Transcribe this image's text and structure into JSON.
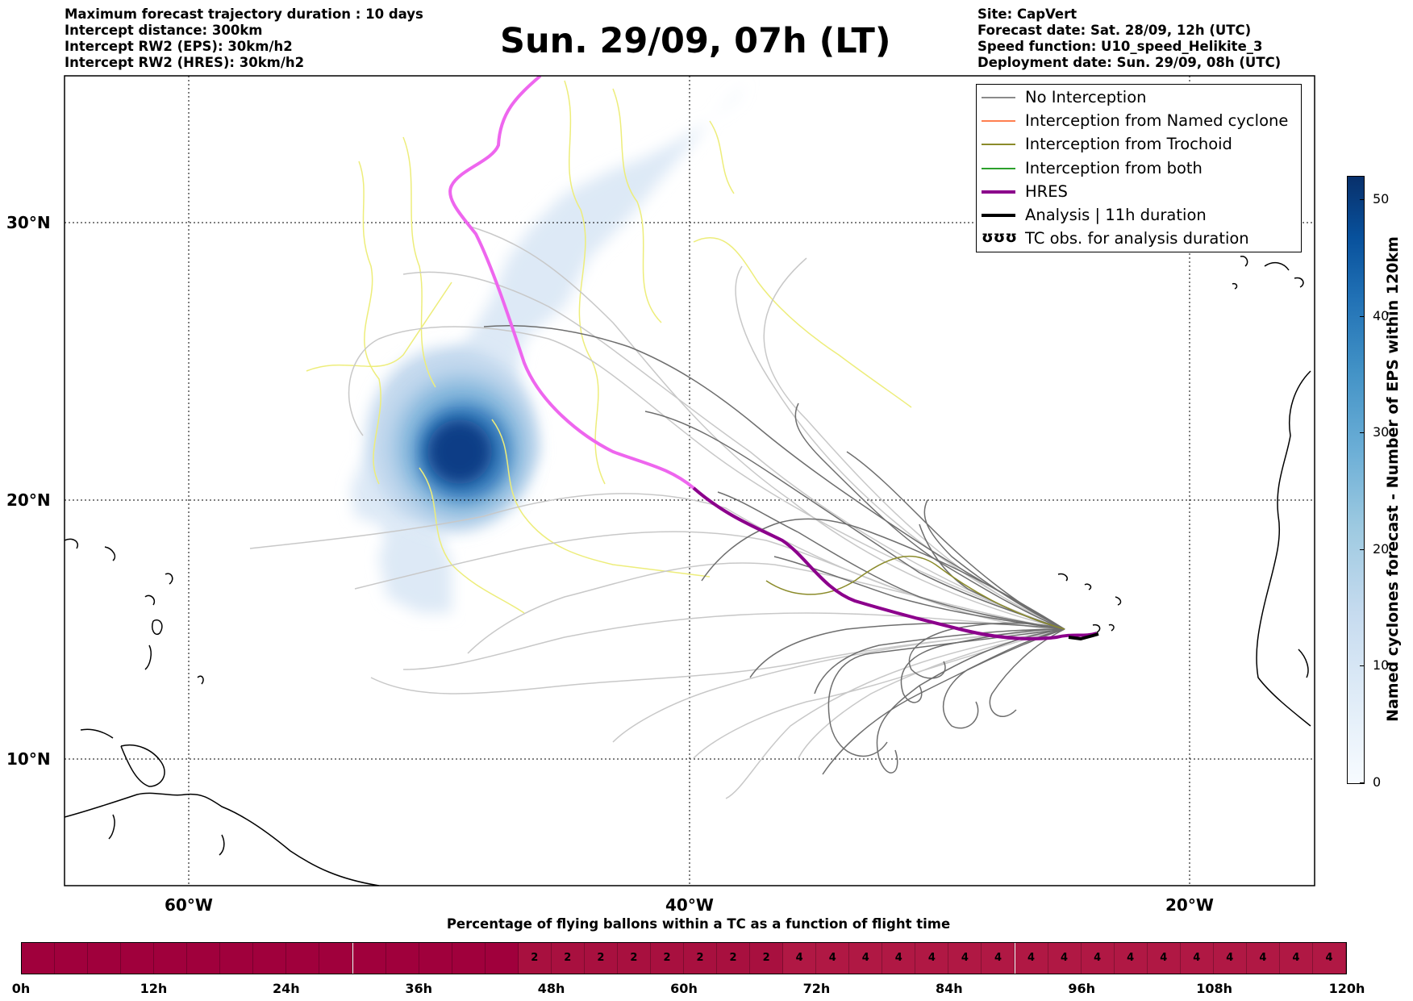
{
  "header_left": {
    "lines": [
      "Maximum forecast trajectory duration : 10 days",
      "Intercept distance: 300km",
      "Intercept RW2 (EPS):  30km/h2",
      "Intercept RW2 (HRES): 30km/h2"
    ]
  },
  "title": "Sun. 29/09, 07h (LT)",
  "header_right": {
    "lines": [
      "Site: CapVert",
      "Forecast date: Sat. 28/09, 12h (UTC)",
      "Speed function: U10_speed_Helikite_3",
      "Deployment date: Sun. 29/09, 08h (UTC)"
    ]
  },
  "map": {
    "lat_ticks": [
      "30°N",
      "20°N",
      "10°N"
    ],
    "lon_ticks": [
      "60°W",
      "40°W",
      "20°W"
    ],
    "colors": {
      "no_interception": "#8a8a8a",
      "named_cyclone": "#ff7f50",
      "trochoid": "#8b8b2a",
      "both": "#2ca02c",
      "hres": "#8b008b",
      "hres_light": "#ee66ee",
      "analysis": "#000000",
      "trochoid_tracks": "#eeee77"
    }
  },
  "legend": {
    "items": [
      {
        "label": "No Interception",
        "color": "#8a8a8a",
        "width": 2
      },
      {
        "label": "Interception from Named cyclone",
        "color": "#ff7f50",
        "width": 2
      },
      {
        "label": "Interception from Trochoid",
        "color": "#8b8b2a",
        "width": 2
      },
      {
        "label": "Interception from both",
        "color": "#2ca02c",
        "width": 2
      },
      {
        "label": "HRES",
        "color": "#8b008b",
        "width": 4
      },
      {
        "label": "Analysis | 11h duration",
        "color": "#000000",
        "width": 4
      },
      {
        "label": "TC obs. for analysis duration",
        "color": "#000000",
        "width": 0,
        "icon": "ʊʊʊ"
      }
    ]
  },
  "colorbar": {
    "label": "Named cyclones forecast - Number of EPS within 120km",
    "ticks": [
      "50",
      "40",
      "30",
      "20",
      "10",
      "0"
    ],
    "tick_values": [
      50,
      40,
      30,
      20,
      10,
      0
    ],
    "max": 52
  },
  "percentage_bar": {
    "title": "Percentage of flying ballons within a TC as a function of flight time",
    "time_labels": [
      "0h",
      "12h",
      "24h",
      "36h",
      "48h",
      "60h",
      "72h",
      "84h",
      "96h",
      "108h",
      "120h"
    ],
    "cells": [
      "",
      "",
      "",
      "",
      "",
      "",
      "",
      "",
      "",
      "",
      "",
      "",
      "",
      "",
      "",
      "2",
      "2",
      "2",
      "2",
      "2",
      "2",
      "2",
      "2",
      "4",
      "4",
      "4",
      "4",
      "4",
      "4",
      "4",
      "4",
      "4",
      "4",
      "4",
      "4",
      "4",
      "4",
      "4",
      "4",
      "4"
    ],
    "cell_colors": {
      "": "#a0003c",
      "2": "#a8103f",
      "4": "#b01844"
    }
  },
  "chart_data": {
    "type": "heatmap",
    "series": [
      {
        "name": "No Interception"
      },
      {
        "name": "HRES"
      },
      {
        "name": "Analysis | 11h duration"
      }
    ]
  }
}
